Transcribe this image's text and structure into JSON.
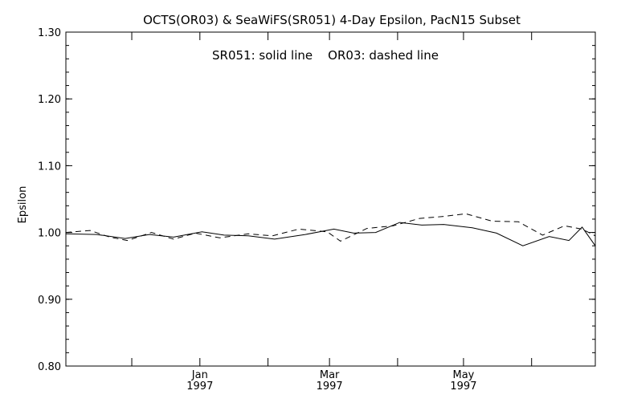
{
  "chart_data": {
    "type": "line",
    "title": "OCTS(OR03) & SeaWiFS(SR051) 4-Day Epsilon, PacN15 Subset",
    "annotation": "SR051: solid line    OR03: dashed line",
    "xlabel": "",
    "ylabel": "Epsilon",
    "ylim": [
      0.8,
      1.3
    ],
    "xlim": [
      "1996-11-01",
      "1997-06-30"
    ],
    "y_ticks": [
      "0.80",
      "0.90",
      "1.00",
      "1.10",
      "1.20",
      "1.30"
    ],
    "x_ticks": [
      {
        "date": "1997-01-01",
        "month": "Jan",
        "year": "1997"
      },
      {
        "date": "1997-03-01",
        "month": "Mar",
        "year": "1997"
      },
      {
        "date": "1997-05-01",
        "month": "May",
        "year": "1997"
      }
    ],
    "x_minor_ticks": [
      "1996-12-01",
      "1997-02-01",
      "1997-04-01",
      "1997-06-01"
    ],
    "grid": false,
    "series": [
      {
        "name": "SR051",
        "line_style": "solid",
        "color": "#000000",
        "x": [
          "1996-11-01",
          "1996-11-15",
          "1996-11-28",
          "1996-12-09",
          "1996-12-20",
          "1997-01-02",
          "1997-01-12",
          "1997-01-23",
          "1997-02-04",
          "1997-02-18",
          "1997-03-03",
          "1997-03-12",
          "1997-03-22",
          "1997-04-02",
          "1997-04-12",
          "1997-04-22",
          "1997-05-05",
          "1997-05-16",
          "1997-05-28",
          "1997-06-09",
          "1997-06-18",
          "1997-06-24",
          "1997-06-30"
        ],
        "y": [
          0.998,
          0.997,
          0.991,
          0.997,
          0.993,
          1.001,
          0.996,
          0.995,
          0.99,
          0.997,
          1.005,
          0.999,
          1.0,
          1.015,
          1.011,
          1.012,
          1.007,
          0.999,
          0.98,
          0.994,
          0.988,
          1.008,
          0.98
        ]
      },
      {
        "name": "OR03",
        "line_style": "dashed",
        "color": "#000000",
        "x": [
          "1996-11-01",
          "1996-11-12",
          "1996-11-21",
          "1996-11-29",
          "1996-12-10",
          "1996-12-20",
          "1996-12-30",
          "1997-01-10",
          "1997-01-23",
          "1997-02-03",
          "1997-02-15",
          "1997-02-28",
          "1997-03-06",
          "1997-03-18",
          "1997-03-30",
          "1997-04-11",
          "1997-04-22",
          "1997-05-02",
          "1997-05-14",
          "1997-05-26",
          "1997-06-06",
          "1997-06-16",
          "1997-06-24",
          "1997-06-30"
        ],
        "y": [
          1.0,
          1.003,
          0.993,
          0.988,
          1.0,
          0.99,
          0.999,
          0.992,
          0.998,
          0.995,
          1.005,
          1.001,
          0.987,
          1.006,
          1.01,
          1.021,
          1.024,
          1.028,
          1.017,
          1.016,
          0.996,
          1.01,
          1.005,
          0.995
        ]
      }
    ]
  }
}
